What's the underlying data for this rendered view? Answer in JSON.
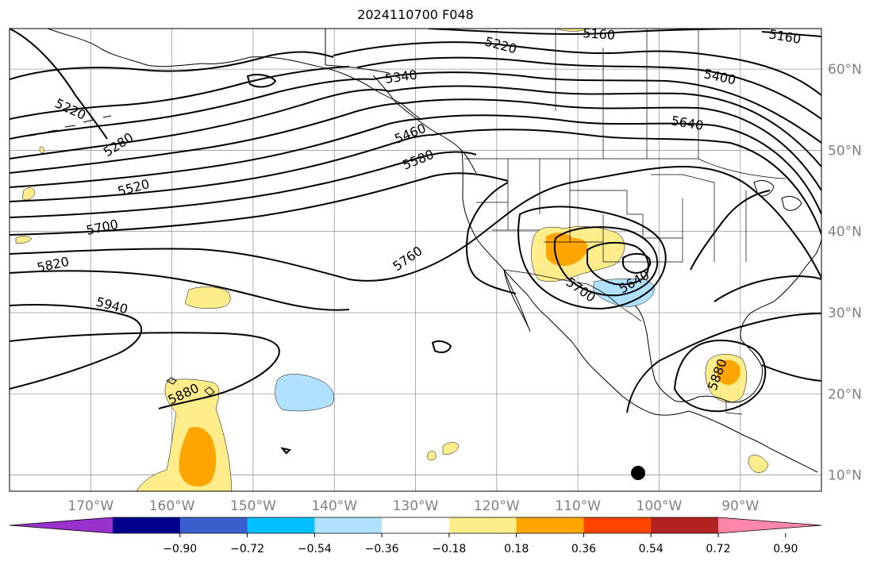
{
  "title": "2024110700 F048",
  "map": {
    "projection": "equirectangular",
    "lon_range": [
      -180,
      -80
    ],
    "lat_range": [
      8,
      65
    ],
    "grid": true,
    "lon_ticks": [
      -170,
      -160,
      -150,
      -140,
      -130,
      -120,
      -110,
      -100,
      -90
    ],
    "lon_tick_labels": [
      "170°W",
      "160°W",
      "150°W",
      "140°W",
      "130°W",
      "120°W",
      "110°W",
      "100°W",
      "90°W"
    ],
    "lat_ticks": [
      10,
      20,
      30,
      40,
      50,
      60
    ],
    "lat_tick_labels": [
      "10°N",
      "20°N",
      "30°N",
      "40°N",
      "50°N",
      "60°N"
    ],
    "tick_label_color": "#808080"
  },
  "contour_labels": [
    "5160",
    "5160",
    "5220",
    "5400",
    "5340",
    "5220",
    "5280",
    "5460",
    "5580",
    "5640",
    "5520",
    "5700",
    "5820",
    "5760",
    "5700",
    "5640",
    "5940",
    "5880",
    "5880"
  ],
  "colorbar": {
    "tick_labels": [
      "−0.90",
      "−0.72",
      "−0.54",
      "−0.36",
      "−0.18",
      "0.18",
      "0.36",
      "0.54",
      "0.72",
      "0.90"
    ],
    "colors": [
      "#9932cc",
      "#00008b",
      "#3a5fcd",
      "#00bfff",
      "#b0e2ff",
      "#ffffff",
      "#ffec8b",
      "#ffa500",
      "#ff4500",
      "#b22222",
      "#ff88aa"
    ]
  }
}
